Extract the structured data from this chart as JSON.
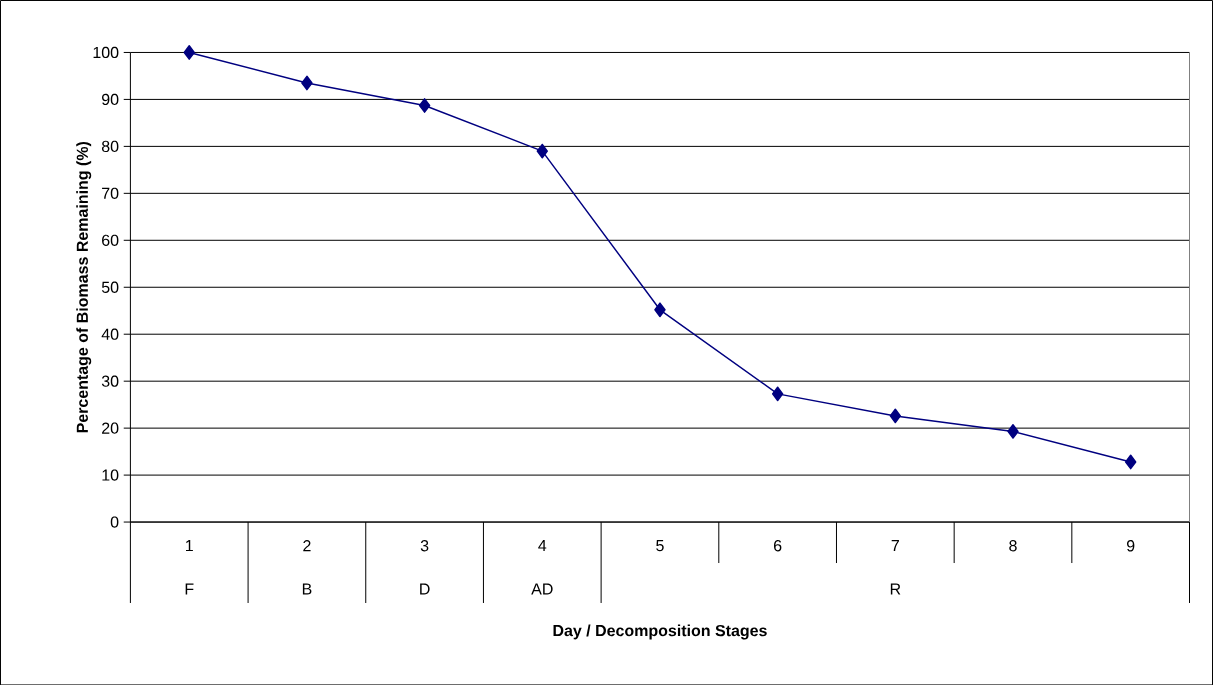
{
  "chart_data": {
    "type": "line",
    "xlabel": "Day / Decomposition Stages",
    "ylabel": "Percentage of Biomass Remaining (%)",
    "categories": [
      "1",
      "2",
      "3",
      "4",
      "5",
      "6",
      "7",
      "8",
      "9"
    ],
    "values": [
      100,
      93.5,
      88.7,
      79,
      45.2,
      27.3,
      22.6,
      19.3,
      12.8
    ],
    "color": "#000080",
    "marker": "diamond",
    "line_style": "solid",
    "ylim": [
      0,
      100
    ],
    "yticks": [
      0,
      10,
      20,
      30,
      40,
      50,
      60,
      70,
      80,
      90,
      100
    ],
    "grid": "y",
    "annotations": [
      "F",
      "B",
      "D",
      "AD",
      "R"
    ]
  }
}
